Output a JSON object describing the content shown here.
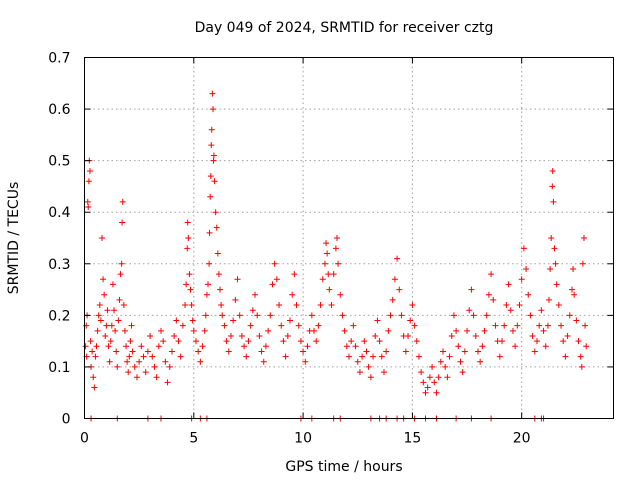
{
  "chart_data": {
    "type": "scatter",
    "title": "Day 049 of 2024, SRMTID for receiver cztg",
    "xlabel": "GPS time / hours",
    "ylabel": "SRMTID / TECUs",
    "xlim": [
      0,
      24.2
    ],
    "ylim": [
      0,
      0.7
    ],
    "xticks": [
      0,
      5,
      10,
      15,
      20
    ],
    "yticks": [
      0,
      0.1,
      0.2,
      0.3,
      0.4,
      0.5,
      0.6,
      0.7
    ],
    "xtick_labels": [
      "0",
      "5",
      "10",
      "15",
      "20"
    ],
    "ytick_labels": [
      "0",
      "0.1",
      "0.2",
      "0.3",
      "0.4",
      "0.5",
      "0.6",
      "0.7"
    ],
    "grid": true,
    "marker": "+",
    "color": "#ff0000",
    "series": [
      {
        "name": "SRMTID",
        "points": [
          [
            0.05,
            0.14
          ],
          [
            0.08,
            0.18
          ],
          [
            0.1,
            0.12
          ],
          [
            0.12,
            0.2
          ],
          [
            0.15,
            0.42
          ],
          [
            0.17,
            0.41
          ],
          [
            0.2,
            0.46
          ],
          [
            0.22,
            0.5
          ],
          [
            0.25,
            0.48
          ],
          [
            0.28,
            0.15
          ],
          [
            0.3,
            0.1
          ],
          [
            0.35,
            0.13
          ],
          [
            0.4,
            0.08
          ],
          [
            0.45,
            0.06
          ],
          [
            0.5,
            0.12
          ],
          [
            0.55,
            0.14
          ],
          [
            0.6,
            0.17
          ],
          [
            0.65,
            0.2
          ],
          [
            0.7,
            0.22
          ],
          [
            0.75,
            0.19
          ],
          [
            0.8,
            0.35
          ],
          [
            0.85,
            0.27
          ],
          [
            0.9,
            0.24
          ],
          [
            0.95,
            0.16
          ],
          [
            1.0,
            0.18
          ],
          [
            1.05,
            0.21
          ],
          [
            1.1,
            0.14
          ],
          [
            1.15,
            0.11
          ],
          [
            1.2,
            0.15
          ],
          [
            1.25,
            0.18
          ],
          [
            1.3,
            0.26
          ],
          [
            1.35,
            0.21
          ],
          [
            1.4,
            0.17
          ],
          [
            1.45,
            0.13
          ],
          [
            1.5,
            0.1
          ],
          [
            1.55,
            0.19
          ],
          [
            1.6,
            0.23
          ],
          [
            1.65,
            0.28
          ],
          [
            1.7,
            0.3
          ],
          [
            1.72,
            0.38
          ],
          [
            1.75,
            0.42
          ],
          [
            1.8,
            0.22
          ],
          [
            1.85,
            0.17
          ],
          [
            1.9,
            0.14
          ],
          [
            1.95,
            0.11
          ],
          [
            2.0,
            0.09
          ],
          [
            2.05,
            0.12
          ],
          [
            2.1,
            0.15
          ],
          [
            2.15,
            0.18
          ],
          [
            2.2,
            0.13
          ],
          [
            2.3,
            0.1
          ],
          [
            2.4,
            0.08
          ],
          [
            2.5,
            0.11
          ],
          [
            2.6,
            0.14
          ],
          [
            2.7,
            0.12
          ],
          [
            2.8,
            0.09
          ],
          [
            2.9,
            0.13
          ],
          [
            3.0,
            0.16
          ],
          [
            3.1,
            0.12
          ],
          [
            3.2,
            0.1
          ],
          [
            3.3,
            0.08
          ],
          [
            3.4,
            0.14
          ],
          [
            3.5,
            0.17
          ],
          [
            3.6,
            0.15
          ],
          [
            3.7,
            0.11
          ],
          [
            3.8,
            0.07
          ],
          [
            3.9,
            0.1
          ],
          [
            4.0,
            0.13
          ],
          [
            4.1,
            0.16
          ],
          [
            4.2,
            0.19
          ],
          [
            4.3,
            0.15
          ],
          [
            4.4,
            0.12
          ],
          [
            4.5,
            0.18
          ],
          [
            4.6,
            0.22
          ],
          [
            4.65,
            0.26
          ],
          [
            4.7,
            0.33
          ],
          [
            4.72,
            0.38
          ],
          [
            4.75,
            0.35
          ],
          [
            4.8,
            0.28
          ],
          [
            4.85,
            0.25
          ],
          [
            4.9,
            0.22
          ],
          [
            4.95,
            0.19
          ],
          [
            5.0,
            0.17
          ],
          [
            5.1,
            0.15
          ],
          [
            5.2,
            0.13
          ],
          [
            5.3,
            0.11
          ],
          [
            5.4,
            0.14
          ],
          [
            5.5,
            0.17
          ],
          [
            5.55,
            0.2
          ],
          [
            5.6,
            0.24
          ],
          [
            5.65,
            0.26
          ],
          [
            5.7,
            0.3
          ],
          [
            5.72,
            0.36
          ],
          [
            5.75,
            0.43
          ],
          [
            5.78,
            0.47
          ],
          [
            5.8,
            0.53
          ],
          [
            5.82,
            0.56
          ],
          [
            5.85,
            0.63
          ],
          [
            5.88,
            0.6
          ],
          [
            5.9,
            0.5
          ],
          [
            5.92,
            0.51
          ],
          [
            5.95,
            0.46
          ],
          [
            6.0,
            0.4
          ],
          [
            6.05,
            0.37
          ],
          [
            6.1,
            0.32
          ],
          [
            6.15,
            0.28
          ],
          [
            6.2,
            0.25
          ],
          [
            6.25,
            0.22
          ],
          [
            6.3,
            0.2
          ],
          [
            6.4,
            0.18
          ],
          [
            6.5,
            0.15
          ],
          [
            6.6,
            0.13
          ],
          [
            6.7,
            0.16
          ],
          [
            6.8,
            0.19
          ],
          [
            6.9,
            0.23
          ],
          [
            7.0,
            0.27
          ],
          [
            7.1,
            0.2
          ],
          [
            7.2,
            0.16
          ],
          [
            7.3,
            0.14
          ],
          [
            7.4,
            0.12
          ],
          [
            7.5,
            0.15
          ],
          [
            7.6,
            0.18
          ],
          [
            7.7,
            0.21
          ],
          [
            7.8,
            0.24
          ],
          [
            7.9,
            0.2
          ],
          [
            8.0,
            0.16
          ],
          [
            8.1,
            0.13
          ],
          [
            8.2,
            0.11
          ],
          [
            8.3,
            0.14
          ],
          [
            8.4,
            0.17
          ],
          [
            8.5,
            0.2
          ],
          [
            8.6,
            0.26
          ],
          [
            8.7,
            0.3
          ],
          [
            8.8,
            0.27
          ],
          [
            8.9,
            0.22
          ],
          [
            9.0,
            0.18
          ],
          [
            9.1,
            0.15
          ],
          [
            9.2,
            0.12
          ],
          [
            9.3,
            0.16
          ],
          [
            9.4,
            0.19
          ],
          [
            9.5,
            0.24
          ],
          [
            9.6,
            0.28
          ],
          [
            9.7,
            0.22
          ],
          [
            9.8,
            0.18
          ],
          [
            9.9,
            0.15
          ],
          [
            10.0,
            0.13
          ],
          [
            10.1,
            0.11
          ],
          [
            10.2,
            0.14
          ],
          [
            10.3,
            0.17
          ],
          [
            10.4,
            0.2
          ],
          [
            10.5,
            0.17
          ],
          [
            10.6,
            0.15
          ],
          [
            10.7,
            0.18
          ],
          [
            10.8,
            0.22
          ],
          [
            10.9,
            0.27
          ],
          [
            11.0,
            0.3
          ],
          [
            11.05,
            0.34
          ],
          [
            11.1,
            0.32
          ],
          [
            11.15,
            0.28
          ],
          [
            11.2,
            0.25
          ],
          [
            11.3,
            0.22
          ],
          [
            11.4,
            0.28
          ],
          [
            11.5,
            0.33
          ],
          [
            11.55,
            0.35
          ],
          [
            11.6,
            0.3
          ],
          [
            11.7,
            0.24
          ],
          [
            11.8,
            0.2
          ],
          [
            11.9,
            0.17
          ],
          [
            12.0,
            0.14
          ],
          [
            12.1,
            0.12
          ],
          [
            12.2,
            0.15
          ],
          [
            12.3,
            0.18
          ],
          [
            12.4,
            0.14
          ],
          [
            12.5,
            0.11
          ],
          [
            12.6,
            0.09
          ],
          [
            12.7,
            0.12
          ],
          [
            12.8,
            0.15
          ],
          [
            12.9,
            0.13
          ],
          [
            13.0,
            0.1
          ],
          [
            13.1,
            0.08
          ],
          [
            13.2,
            0.12
          ],
          [
            13.3,
            0.16
          ],
          [
            13.4,
            0.19
          ],
          [
            13.5,
            0.15
          ],
          [
            13.6,
            0.12
          ],
          [
            13.7,
            0.09
          ],
          [
            13.8,
            0.13
          ],
          [
            13.9,
            0.17
          ],
          [
            14.0,
            0.2
          ],
          [
            14.1,
            0.23
          ],
          [
            14.2,
            0.27
          ],
          [
            14.3,
            0.31
          ],
          [
            14.4,
            0.25
          ],
          [
            14.5,
            0.2
          ],
          [
            14.6,
            0.16
          ],
          [
            14.7,
            0.13
          ],
          [
            14.8,
            0.16
          ],
          [
            14.9,
            0.19
          ],
          [
            15.0,
            0.22
          ],
          [
            15.1,
            0.18
          ],
          [
            15.2,
            0.15
          ],
          [
            15.3,
            0.12
          ],
          [
            15.4,
            0.09
          ],
          [
            15.5,
            0.07
          ],
          [
            15.6,
            0.05
          ],
          [
            15.7,
            0.06
          ],
          [
            15.8,
            0.08
          ],
          [
            15.9,
            0.1
          ],
          [
            16.0,
            0.07
          ],
          [
            16.1,
            0.05
          ],
          [
            16.2,
            0.08
          ],
          [
            16.3,
            0.11
          ],
          [
            16.4,
            0.13
          ],
          [
            16.5,
            0.1
          ],
          [
            16.6,
            0.08
          ],
          [
            16.7,
            0.12
          ],
          [
            16.8,
            0.16
          ],
          [
            16.9,
            0.2
          ],
          [
            17.0,
            0.17
          ],
          [
            17.1,
            0.14
          ],
          [
            17.2,
            0.11
          ],
          [
            17.3,
            0.09
          ],
          [
            17.4,
            0.13
          ],
          [
            17.5,
            0.17
          ],
          [
            17.6,
            0.21
          ],
          [
            17.7,
            0.25
          ],
          [
            17.8,
            0.2
          ],
          [
            17.9,
            0.16
          ],
          [
            18.0,
            0.13
          ],
          [
            18.1,
            0.11
          ],
          [
            18.2,
            0.14
          ],
          [
            18.3,
            0.17
          ],
          [
            18.4,
            0.2
          ],
          [
            18.5,
            0.24
          ],
          [
            18.6,
            0.28
          ],
          [
            18.7,
            0.23
          ],
          [
            18.8,
            0.18
          ],
          [
            18.9,
            0.15
          ],
          [
            19.0,
            0.12
          ],
          [
            19.1,
            0.15
          ],
          [
            19.2,
            0.18
          ],
          [
            19.3,
            0.22
          ],
          [
            19.4,
            0.26
          ],
          [
            19.5,
            0.21
          ],
          [
            19.6,
            0.17
          ],
          [
            19.7,
            0.14
          ],
          [
            19.8,
            0.18
          ],
          [
            19.9,
            0.22
          ],
          [
            20.0,
            0.27
          ],
          [
            20.1,
            0.33
          ],
          [
            20.2,
            0.29
          ],
          [
            20.3,
            0.24
          ],
          [
            20.4,
            0.2
          ],
          [
            20.5,
            0.16
          ],
          [
            20.6,
            0.13
          ],
          [
            20.7,
            0.15
          ],
          [
            20.8,
            0.18
          ],
          [
            20.9,
            0.21
          ],
          [
            21.0,
            0.17
          ],
          [
            21.1,
            0.14
          ],
          [
            21.2,
            0.18
          ],
          [
            21.25,
            0.23
          ],
          [
            21.3,
            0.29
          ],
          [
            21.35,
            0.35
          ],
          [
            21.4,
            0.45
          ],
          [
            21.42,
            0.48
          ],
          [
            21.45,
            0.42
          ],
          [
            21.5,
            0.33
          ],
          [
            21.55,
            0.3
          ],
          [
            21.6,
            0.26
          ],
          [
            21.7,
            0.22
          ],
          [
            21.8,
            0.18
          ],
          [
            21.9,
            0.15
          ],
          [
            22.0,
            0.12
          ],
          [
            22.1,
            0.16
          ],
          [
            22.2,
            0.2
          ],
          [
            22.3,
            0.25
          ],
          [
            22.35,
            0.29
          ],
          [
            22.4,
            0.24
          ],
          [
            22.5,
            0.19
          ],
          [
            22.6,
            0.15
          ],
          [
            22.7,
            0.12
          ],
          [
            22.75,
            0.1
          ],
          [
            22.8,
            0.3
          ],
          [
            22.85,
            0.35
          ],
          [
            22.9,
            0.18
          ],
          [
            22.95,
            0.14
          ],
          [
            0.3,
            0.0
          ],
          [
            1.5,
            0.0
          ],
          [
            2.9,
            0.0
          ],
          [
            3.5,
            0.0
          ],
          [
            4.9,
            0.0
          ],
          [
            5.3,
            0.0
          ],
          [
            5.6,
            0.0
          ],
          [
            9.9,
            0.0
          ],
          [
            10.4,
            0.0
          ],
          [
            11.4,
            0.0
          ],
          [
            11.7,
            0.0
          ],
          [
            13.1,
            0.0
          ],
          [
            13.5,
            0.0
          ],
          [
            13.8,
            0.0
          ],
          [
            14.3,
            0.0
          ],
          [
            14.6,
            0.0
          ],
          [
            15.1,
            0.0
          ],
          [
            15.6,
            0.0
          ],
          [
            16.1,
            0.0
          ],
          [
            17.0,
            0.0
          ],
          [
            17.7,
            0.0
          ],
          [
            18.6,
            0.0
          ],
          [
            20.6,
            0.0
          ],
          [
            20.9,
            0.0
          ],
          [
            21.0,
            0.0
          ]
        ]
      }
    ]
  }
}
